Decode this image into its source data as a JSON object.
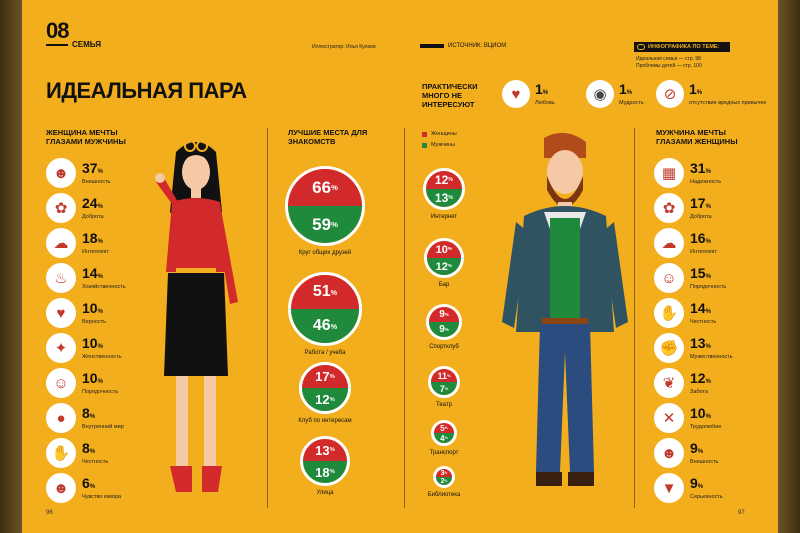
{
  "header": {
    "section_number": "08",
    "section_name": "СЕМЬЯ",
    "credit": "Иллюстратор: Илья Кулаев",
    "source": "ИСТОЧНИК: ВЦИОМ",
    "info_badge": "ИНФОГРАФИКА ПО ТЕМЕ:",
    "info_lines": [
      "Идеальная семья — стр. 98",
      "Проблемы детей — стр. 100"
    ]
  },
  "title": "ИДЕАЛЬНАЯ ПАРА",
  "not_interested": {
    "heading": "ПРАКТИЧЕСКИ МНОГО НЕ ИНТЕРЕСУЮТ",
    "items": [
      {
        "icon": "heart-icon",
        "value": "1",
        "label": "Любовь"
      },
      {
        "icon": "owl-icon",
        "value": "1",
        "label": "Мудрость"
      },
      {
        "icon": "no-smoking-icon",
        "value": "1",
        "label": "отсутствие вредных привычек"
      }
    ]
  },
  "woman": {
    "heading": "ЖЕНЩИНА МЕЧТЫ ГЛАЗАМИ МУЖЧИНЫ",
    "stats": [
      {
        "icon": "face-icon",
        "glyph": "☻",
        "value": "37",
        "label": "Внешность"
      },
      {
        "icon": "flower-icon",
        "glyph": "✿",
        "value": "24",
        "label": "Доброта"
      },
      {
        "icon": "brain-icon",
        "glyph": "☁",
        "value": "18",
        "label": "Интеллект"
      },
      {
        "icon": "pot-icon",
        "glyph": "♨",
        "value": "14",
        "label": "Хозяйственность"
      },
      {
        "icon": "lock-icon",
        "glyph": "♥",
        "value": "10",
        "label": "Верность"
      },
      {
        "icon": "heel-icon",
        "glyph": "✦",
        "value": "10",
        "label": "Женственность"
      },
      {
        "icon": "woman-face-icon",
        "glyph": "☺",
        "value": "10",
        "label": "Порядочность"
      },
      {
        "icon": "eye-icon",
        "glyph": "●",
        "value": "8",
        "label": "Внутренний мир"
      },
      {
        "icon": "hand-icon",
        "glyph": "✋",
        "value": "8",
        "label": "Честность"
      },
      {
        "icon": "smile-icon",
        "glyph": "☻",
        "value": "6",
        "label": "Чувство юмора"
      }
    ]
  },
  "places": {
    "heading": "ЛУЧШИЕ МЕСТА ДЛЯ ЗНАКОМСТВ",
    "legend": [
      {
        "label": "Женщины",
        "color": "#d2292a"
      },
      {
        "label": "Мужчины",
        "color": "#1f8a3b"
      }
    ],
    "big": [
      {
        "women": "66",
        "men": "59",
        "label": "Круг общих друзей"
      },
      {
        "women": "51",
        "men": "46",
        "label": "Работа / учеба"
      },
      {
        "women": "17",
        "men": "12",
        "label": "Клуб по интересам"
      },
      {
        "women": "13",
        "men": "18",
        "label": "Улица"
      }
    ],
    "small": [
      {
        "women": "12",
        "men": "13",
        "label": "Интернет"
      },
      {
        "women": "10",
        "men": "12",
        "label": "Бар"
      },
      {
        "women": "9",
        "men": "9",
        "label": "Спортклуб"
      },
      {
        "women": "11",
        "men": "7",
        "label": "Театр"
      },
      {
        "women": "5",
        "men": "4",
        "label": "Транспорт"
      },
      {
        "women": "3",
        "men": "2",
        "label": "Библиотека"
      }
    ]
  },
  "man": {
    "heading": "МУЖЧИНА МЕЧТЫ ГЛАЗАМИ ЖЕНЩИНЫ",
    "stats": [
      {
        "icon": "brick-wall-icon",
        "glyph": "▦",
        "value": "31",
        "label": "Надежность"
      },
      {
        "icon": "flower-icon",
        "glyph": "✿",
        "value": "17",
        "label": "Доброта"
      },
      {
        "icon": "brain-icon",
        "glyph": "☁",
        "value": "16",
        "label": "Интеллект"
      },
      {
        "icon": "man-icon",
        "glyph": "☺",
        "value": "15",
        "label": "Порядочность"
      },
      {
        "icon": "hand-icon",
        "glyph": "✋",
        "value": "14",
        "label": "Честность"
      },
      {
        "icon": "muscle-icon",
        "glyph": "✊",
        "value": "13",
        "label": "Мужественность"
      },
      {
        "icon": "care-hand-icon",
        "glyph": "❦",
        "value": "12",
        "label": "Забота"
      },
      {
        "icon": "tools-icon",
        "glyph": "✕",
        "value": "10",
        "label": "Трудолюбие"
      },
      {
        "icon": "man-face-icon",
        "glyph": "☻",
        "value": "9",
        "label": "Внешность"
      },
      {
        "icon": "tie-icon",
        "glyph": "▼",
        "value": "9",
        "label": "Серьезность"
      }
    ]
  },
  "pages": {
    "left": "96",
    "right": "97"
  },
  "percent_sign": "%"
}
